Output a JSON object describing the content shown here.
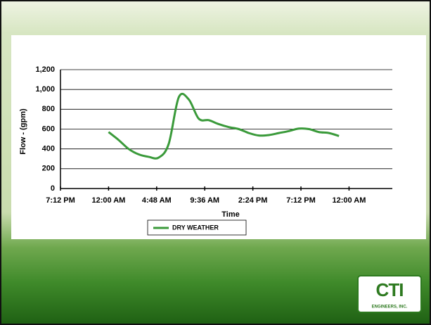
{
  "chart_data": {
    "type": "line",
    "x_label": "Time",
    "y_label": "Flow - (gpm)",
    "xlim": [
      0.8,
      2.18
    ],
    "xticks": [
      {
        "value": 0.8,
        "label": "7:12 PM"
      },
      {
        "value": 1.0,
        "label": "12:00 AM"
      },
      {
        "value": 1.2,
        "label": "4:48 AM"
      },
      {
        "value": 1.4,
        "label": "9:36 AM"
      },
      {
        "value": 1.6,
        "label": "2:24 PM"
      },
      {
        "value": 1.8,
        "label": "7:12 PM"
      },
      {
        "value": 2.0,
        "label": "12:00 AM"
      }
    ],
    "ylim": [
      0,
      1200
    ],
    "yticks": [
      0,
      200,
      400,
      600,
      800,
      {
        "value": 1000,
        "label": "1,000"
      },
      {
        "value": 1200,
        "label": "1,200"
      }
    ],
    "grid": true,
    "legend": "bottom",
    "x": [
      1.0,
      1.0417,
      1.0833,
      1.125,
      1.1667,
      1.2083,
      1.25,
      1.2917,
      1.3333,
      1.375,
      1.4167,
      1.4583,
      1.5,
      1.5417,
      1.5833,
      1.625,
      1.6667,
      1.7083,
      1.75,
      1.7917,
      1.8333,
      1.875,
      1.9167,
      1.9583
    ],
    "series": [
      {
        "name": "DRY WEATHER",
        "color": "#3a9a3a",
        "values": [
          570,
          490,
          400,
          345,
          320,
          312,
          450,
          920,
          900,
          705,
          690,
          650,
          620,
          600,
          560,
          535,
          540,
          560,
          580,
          605,
          600,
          570,
          560,
          530
        ]
      }
    ]
  },
  "logo": {
    "mark": "CTI",
    "text": "ENGINEERS, INC."
  }
}
